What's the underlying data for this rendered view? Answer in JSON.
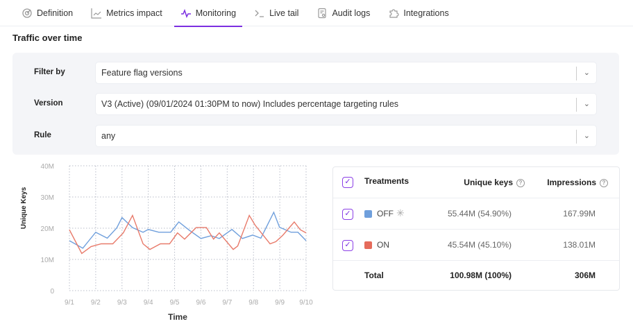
{
  "tabs": [
    {
      "label": "Definition",
      "icon": "target-icon"
    },
    {
      "label": "Metrics impact",
      "icon": "line-chart-icon"
    },
    {
      "label": "Monitoring",
      "icon": "pulse-icon",
      "active": true
    },
    {
      "label": "Live tail",
      "icon": "terminal-icon"
    },
    {
      "label": "Audit logs",
      "icon": "document-search-icon"
    },
    {
      "label": "Integrations",
      "icon": "puzzle-icon"
    }
  ],
  "section_title": "Traffic over time",
  "filters": [
    {
      "label": "Filter by",
      "value": "Feature flag versions"
    },
    {
      "label": "Version",
      "value": "V3 (Active) (09/01/2024 01:30PM to now) Includes percentage targeting rules"
    },
    {
      "label": "Rule",
      "value": "any"
    }
  ],
  "chart_data": {
    "type": "line",
    "xlabel": "Time",
    "ylabel": "Unique Keys",
    "x_ticks": [
      "9/1",
      "9/2",
      "9/3",
      "9/4",
      "9/5",
      "9/6",
      "9/7",
      "9/8",
      "9/9",
      "9/10"
    ],
    "x_unit": "day of September 2024",
    "xlim": [
      1,
      10
    ],
    "ylim": [
      0,
      40000000
    ],
    "y_ticks": [
      "0",
      "10M",
      "20M",
      "30M",
      "40M"
    ],
    "grid": true,
    "series": [
      {
        "color": "#6f9fdc",
        "points": [
          [
            1,
            16
          ],
          [
            1.51,
            13.6
          ],
          [
            2,
            18.7
          ],
          [
            2.44,
            16.8
          ],
          [
            2.8,
            20.1
          ],
          [
            3,
            23.4
          ],
          [
            3.4,
            20.2
          ],
          [
            3.8,
            18.7
          ],
          [
            4,
            19.6
          ],
          [
            4.4,
            18.7
          ],
          [
            4.85,
            18.7
          ],
          [
            5.16,
            22
          ],
          [
            5.55,
            19.4
          ],
          [
            6,
            16.7
          ],
          [
            6.39,
            17.6
          ],
          [
            6.7,
            16.7
          ],
          [
            7.18,
            19.6
          ],
          [
            7.58,
            16.7
          ],
          [
            7.97,
            17.8
          ],
          [
            8.28,
            16.8
          ],
          [
            8.77,
            25.1
          ],
          [
            8.99,
            20.3
          ],
          [
            9.43,
            18.7
          ],
          [
            9.69,
            18.7
          ],
          [
            10,
            16
          ]
        ]
      },
      {
        "color": "#e87a6a",
        "points": [
          [
            1,
            19.5
          ],
          [
            1.47,
            11.9
          ],
          [
            1.82,
            14.1
          ],
          [
            2.21,
            15
          ],
          [
            2.65,
            15
          ],
          [
            3.05,
            18.5
          ],
          [
            3.4,
            24.1
          ],
          [
            3.8,
            15
          ],
          [
            4.06,
            13.2
          ],
          [
            4.46,
            15
          ],
          [
            4.81,
            15
          ],
          [
            5.11,
            18.5
          ],
          [
            5.38,
            16.5
          ],
          [
            5.82,
            20.2
          ],
          [
            6.21,
            20.2
          ],
          [
            6.48,
            16.5
          ],
          [
            6.7,
            18.5
          ],
          [
            7.23,
            13.2
          ],
          [
            7.4,
            14.3
          ],
          [
            7.84,
            24.1
          ],
          [
            8.06,
            21
          ],
          [
            8.63,
            15
          ],
          [
            8.85,
            15.7
          ],
          [
            9.11,
            17.7
          ],
          [
            9.55,
            22
          ],
          [
            9.78,
            19.5
          ],
          [
            10,
            18.5
          ]
        ]
      }
    ],
    "y_point_unit": "millions"
  },
  "table": {
    "headers": {
      "treatments": "Treatments",
      "unique_keys": "Unique keys",
      "impressions": "Impressions"
    },
    "rows": [
      {
        "name": "OFF",
        "color": "#6f9fdc",
        "unique_keys": "55.44M (54.90%)",
        "impressions": "167.99M",
        "checked": true,
        "default_icon": "asterisk-icon"
      },
      {
        "name": "ON",
        "color": "#e56b5b",
        "unique_keys": "45.54M (45.10%)",
        "impressions": "138.01M",
        "checked": true
      }
    ],
    "total": {
      "label": "Total",
      "unique_keys": "100.98M (100%)",
      "impressions": "306M"
    }
  }
}
